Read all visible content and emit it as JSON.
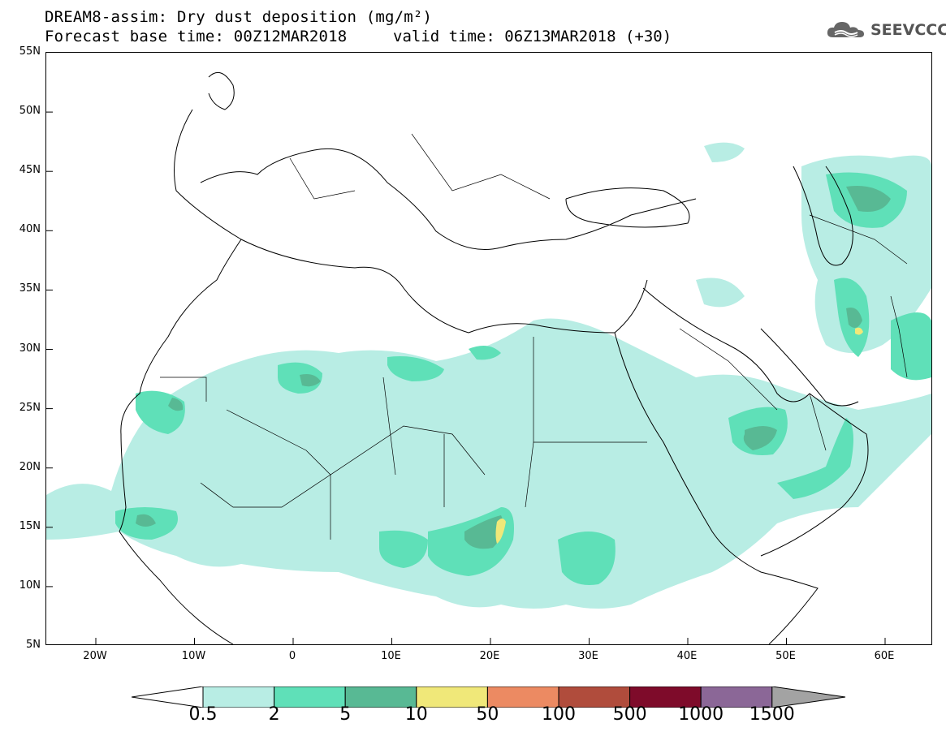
{
  "header": {
    "title": "DREAM8-assim: Dry dust deposition (mg/m²)",
    "base_time": "Forecast base time: 00Z12MAR2018",
    "valid_time": "valid time: 06Z13MAR2018 (+30)",
    "logo_text": "SEEVCCC",
    "logo_icon": "cloud-icon"
  },
  "map": {
    "lat_labels": [
      "55N",
      "50N",
      "45N",
      "40N",
      "35N",
      "30N",
      "25N",
      "20N",
      "15N",
      "10N",
      "5N"
    ],
    "lon_labels": [
      "20W",
      "10W",
      "0",
      "10E",
      "20E",
      "30E",
      "40E",
      "50E",
      "60E"
    ]
  },
  "colorbar": {
    "labels": [
      "0.5",
      "2",
      "5",
      "10",
      "50",
      "100",
      "500",
      "1000",
      "1500"
    ],
    "colors": [
      "#ffffff",
      "#b8ede4",
      "#5fe0b8",
      "#58b994",
      "#f0e879",
      "#ec8a62",
      "#b04c3c",
      "#7e0b2a",
      "#8b6797",
      "#a3a3a3"
    ]
  }
}
